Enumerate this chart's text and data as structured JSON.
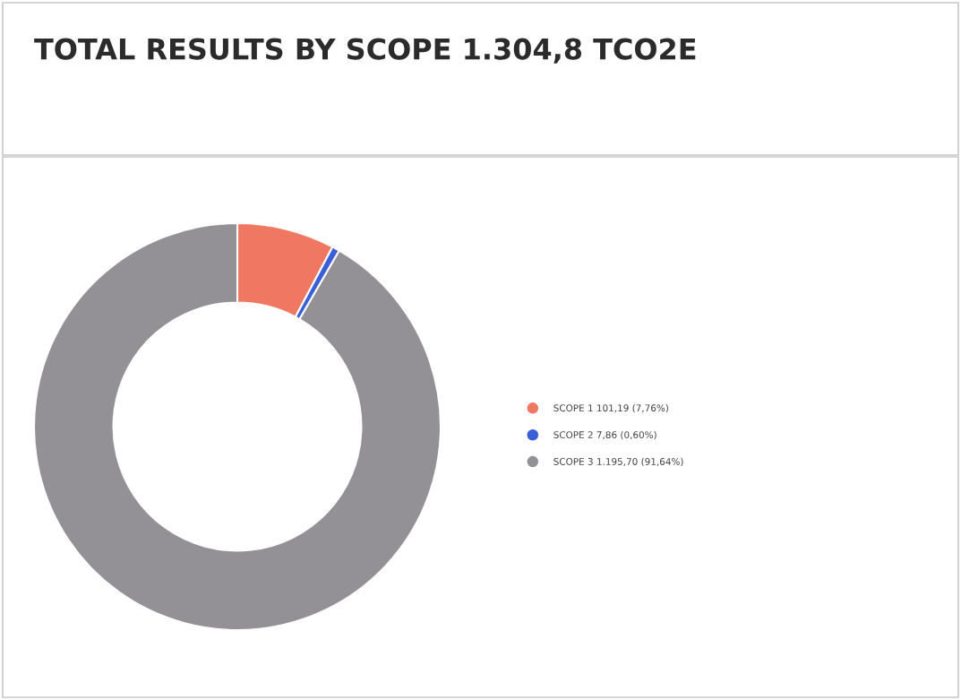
{
  "chart_data": {
    "type": "donut",
    "title": "TOTAL RESULTS BY SCOPE 1.304,8 TCO2E",
    "categories": [
      "SCOPE 1 101,19 (7,76%)",
      "SCOPE 2 7,86 (0,60%)",
      "SCOPE 3 1.195,70 (91,64%)"
    ],
    "values": [
      101.19,
      7.86,
      1195.7
    ],
    "colors": [
      "#f07862",
      "#3a5fd8",
      "#939196"
    ],
    "legend": "right"
  }
}
